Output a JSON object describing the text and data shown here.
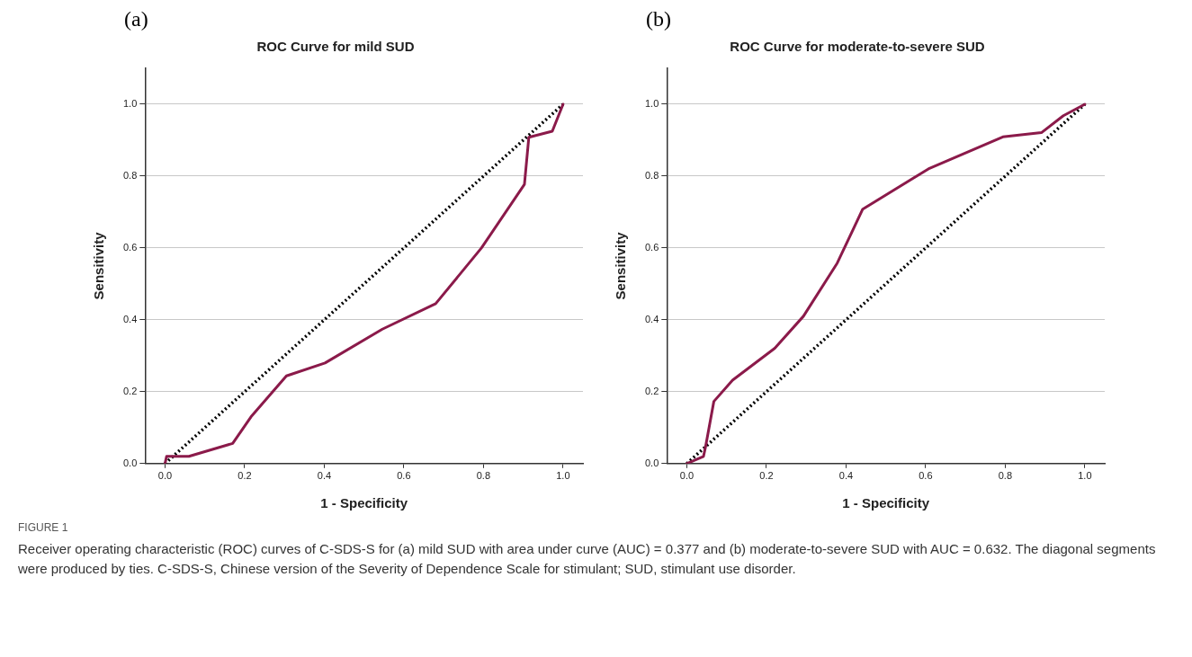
{
  "chart_data": [
    {
      "type": "line",
      "title": "ROC Curve for mild SUD",
      "xlabel": "1 - Specificity",
      "ylabel": "Sensitivity",
      "annotations": [
        "(a)"
      ],
      "xlim": [
        -0.05,
        1.05
      ],
      "ylim": [
        0,
        1.1
      ],
      "xticks": [
        {
          "value": 0,
          "label": "0.0"
        },
        {
          "value": 0.2,
          "label": "0.2"
        },
        {
          "value": 0.4,
          "label": "0.4"
        },
        {
          "value": 0.6,
          "label": "0.6"
        },
        {
          "value": 0.8,
          "label": "0.8"
        },
        {
          "value": 1,
          "label": "1.0"
        }
      ],
      "yticks": [
        {
          "value": 0,
          "label": "0.0"
        },
        {
          "value": 0.2,
          "label": "0.2"
        },
        {
          "value": 0.4,
          "label": "0.4"
        },
        {
          "value": 0.6,
          "label": "0.6"
        },
        {
          "value": 0.8,
          "label": "0.8"
        },
        {
          "value": 1,
          "label": "1.0"
        }
      ],
      "grid": "y",
      "legend": false,
      "marker": "none",
      "series": [
        {
          "color": "#8b1a4a",
          "line_style": "solid",
          "x": [
            0,
            0.004,
            0.06,
            0.17,
            0.216,
            0.305,
            0.402,
            0.546,
            0.68,
            0.795,
            0.903,
            0.914,
            0.973,
            1
          ],
          "values": [
            0,
            0.02,
            0.02,
            0.056,
            0.13,
            0.244,
            0.28,
            0.374,
            0.445,
            0.6,
            0.777,
            0.908,
            0.925,
            1
          ]
        },
        {
          "color": "#000000",
          "line_style": "dotted",
          "x": [
            0,
            1
          ],
          "values": [
            0,
            1
          ]
        }
      ]
    },
    {
      "type": "line",
      "title": "ROC Curve for moderate-to-severe SUD",
      "xlabel": "1 - Specificity",
      "ylabel": "Sensitivity",
      "annotations": [
        "(b)"
      ],
      "xlim": [
        -0.05,
        1.05
      ],
      "ylim": [
        0,
        1.1
      ],
      "xticks": [
        {
          "value": 0,
          "label": "0.0"
        },
        {
          "value": 0.2,
          "label": "0.2"
        },
        {
          "value": 0.4,
          "label": "0.4"
        },
        {
          "value": 0.6,
          "label": "0.6"
        },
        {
          "value": 0.8,
          "label": "0.8"
        },
        {
          "value": 1,
          "label": "1.0"
        }
      ],
      "yticks": [
        {
          "value": 0,
          "label": "0.0"
        },
        {
          "value": 0.2,
          "label": "0.2"
        },
        {
          "value": 0.4,
          "label": "0.4"
        },
        {
          "value": 0.6,
          "label": "0.6"
        },
        {
          "value": 0.8,
          "label": "0.8"
        },
        {
          "value": 1,
          "label": "1.0"
        }
      ],
      "grid": "y",
      "legend": false,
      "marker": "none",
      "series": [
        {
          "color": "#8b1a4a",
          "line_style": "solid",
          "x": [
            0,
            0.042,
            0.047,
            0.068,
            0.115,
            0.221,
            0.293,
            0.378,
            0.442,
            0.607,
            0.794,
            0.891,
            0.946,
            1
          ],
          "values": [
            0,
            0.02,
            0.046,
            0.173,
            0.232,
            0.321,
            0.41,
            0.558,
            0.708,
            0.82,
            0.909,
            0.921,
            0.968,
            1
          ]
        },
        {
          "color": "#000000",
          "line_style": "dotted",
          "x": [
            0,
            1
          ],
          "values": [
            0,
            1
          ]
        }
      ]
    },
    {
      "type": "other",
      "title": "FIGURE 1",
      "annotations": [
        "Receiver operating characteristic (ROC) curves of C-SDS-S for (a) mild SUD with area under curve (AUC) = 0.377 and (b) moderate-to-severe SUD with AUC = 0.632. The diagonal segments were produced by ties. C-SDS-S, Chinese version of the Severity of Dependence Scale for stimulant; SUD, stimulant use disorder."
      ]
    }
  ]
}
